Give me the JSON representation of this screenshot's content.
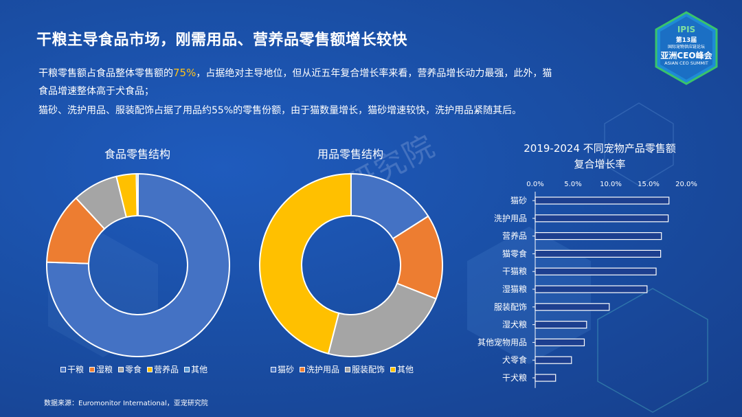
{
  "title": "干粮主导食品市场，刚需用品、营养品零售额增长较快",
  "logo": {
    "brand": "IPIS",
    "edition": "第13届",
    "forum": "国际宠物供应链论坛",
    "event": "亚洲CEO峰会",
    "event_en": "ASIAN CEO SUMMIT"
  },
  "intro": {
    "p1_before": "干粮零售额占食品整体零售额的",
    "p1_highlight": "75%",
    "p1_after": "，占据绝对主导地位，但从近五年复合增长率来看，营养品增长动力最强，此外，猫",
    "p1_line2": "食品增速整体高于犬食品；",
    "p2": "猫砂、洗护用品、服装配饰占据了用品约55%的零售份额，由于猫数量增长，猫砂增速较快，洗护用品紧随其后。"
  },
  "watermark": "亚宠研究院",
  "source": "数据来源：Euromonitor International，亚宠研究院",
  "colors": {
    "blue": "#4472c4",
    "orange": "#ed7d31",
    "gray": "#a5a5a5",
    "yellow": "#ffc000"
  },
  "chart_data": [
    {
      "type": "pie",
      "title": "食品零售结构",
      "categories": [
        "干粮",
        "湿粮",
        "零食",
        "营养品",
        "其他"
      ],
      "values": [
        75,
        12.5,
        8,
        3.5,
        0.3
      ],
      "colors": [
        "#4472c4",
        "#ed7d31",
        "#a5a5a5",
        "#ffc000",
        "#5b9bd5"
      ],
      "legend": "bottom"
    },
    {
      "type": "pie",
      "title": "用品零售结构",
      "categories": [
        "猫砂",
        "洗护用品",
        "服装配饰",
        "其他"
      ],
      "values": [
        16,
        15,
        23,
        46
      ],
      "colors": [
        "#4472c4",
        "#ed7d31",
        "#a5a5a5",
        "#ffc000"
      ],
      "legend": "bottom"
    },
    {
      "type": "bar",
      "orientation": "horizontal",
      "title_line1": "2019-2024 不同宠物产品零售额",
      "title_line2": "复合增长率",
      "categories": [
        "猫砂",
        "洗护用品",
        "营养品",
        "猫零食",
        "干猫粮",
        "湿猫粮",
        "服装配饰",
        "湿犬粮",
        "其他宠物用品",
        "犬零食",
        "干犬粮"
      ],
      "values": [
        0.177,
        0.176,
        0.167,
        0.166,
        0.16,
        0.148,
        0.098,
        0.068,
        0.065,
        0.048,
        0.027
      ],
      "xlim": [
        0,
        0.2
      ],
      "xticks": [
        "0.0%",
        "5.0%",
        "10.0%",
        "15.0%",
        "20.0%"
      ],
      "xaxis_position": "top",
      "grid": false
    }
  ]
}
